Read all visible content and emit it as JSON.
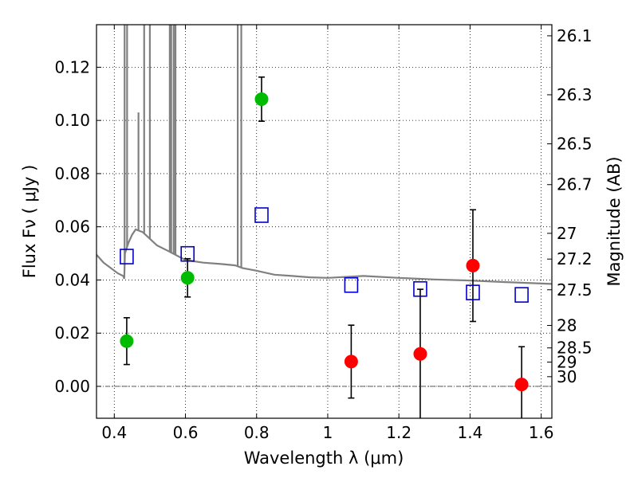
{
  "chart_data": {
    "type": "scatter",
    "xlabel": "Wavelength  λ (μm)",
    "ylabel": "Flux  Fν  ( μJy )",
    "y2label": "Magnitude (AB)",
    "xlim": [
      0.35,
      1.63
    ],
    "ylim": [
      -0.012,
      0.136
    ],
    "grid": true,
    "x_ticks": [
      0.4,
      0.6,
      0.8,
      1.0,
      1.2,
      1.4,
      1.6
    ],
    "x_tick_labels": [
      "0.4",
      "0.6",
      "0.8",
      "1",
      "1.2",
      "1.4",
      "1.6"
    ],
    "y_ticks": [
      0.0,
      0.02,
      0.04,
      0.06,
      0.08,
      0.1,
      0.12
    ],
    "y_tick_labels": [
      "0.00",
      "0.02",
      "0.04",
      "0.06",
      "0.08",
      "0.10",
      "0.12"
    ],
    "y2_ticks": [
      26.1,
      26.3,
      26.5,
      26.7,
      27,
      27.2,
      27.5,
      28,
      28.5,
      29,
      30
    ],
    "y2_tick_labels": [
      "26.1",
      "26.3",
      "26.5",
      "26.7",
      "27",
      "27.2",
      "27.5",
      "28",
      "28.5",
      "29",
      "30"
    ],
    "colors": {
      "green": "#00bb00",
      "red": "#ff0000",
      "blue": "#0000cc",
      "model": "#808080"
    },
    "series": [
      {
        "marker": "circle",
        "color": "green",
        "x": [
          0.435,
          0.606,
          0.814
        ],
        "y": [
          0.017,
          0.0408,
          0.108
        ],
        "err": [
          0.0088,
          0.0072,
          0.0083
        ]
      },
      {
        "marker": "circle",
        "color": "red",
        "x": [
          1.066,
          1.26,
          1.408,
          1.545
        ],
        "y": [
          0.0093,
          0.0122,
          0.0454,
          0.0007
        ],
        "err": [
          0.0137,
          0.0243,
          0.021,
          0.0142
        ]
      },
      {
        "marker": "square",
        "color": "blue",
        "x": [
          0.435,
          0.606,
          0.814,
          1.066,
          1.26,
          1.408,
          1.545
        ],
        "y": [
          0.0488,
          0.0498,
          0.0644,
          0.0381,
          0.0366,
          0.0353,
          0.0344
        ]
      }
    ],
    "model_spectrum": {
      "color": "model",
      "x": [
        0.35,
        0.37,
        0.39,
        0.41,
        0.425,
        0.428,
        0.43,
        0.44,
        0.45,
        0.46,
        0.48,
        0.5,
        0.52,
        0.55,
        0.6,
        0.65,
        0.7,
        0.74,
        0.76,
        0.8,
        0.85,
        0.9,
        0.95,
        1.0,
        1.1,
        1.2,
        1.3,
        1.4,
        1.5,
        1.63
      ],
      "y": [
        0.0495,
        0.0465,
        0.0445,
        0.0425,
        0.0415,
        0.0405,
        0.05,
        0.054,
        0.057,
        0.059,
        0.058,
        0.0555,
        0.053,
        0.051,
        0.0475,
        0.0465,
        0.046,
        0.0455,
        0.0445,
        0.0435,
        0.042,
        0.0415,
        0.041,
        0.0408,
        0.0415,
        0.0408,
        0.0402,
        0.0398,
        0.0392,
        0.0385
      ]
    },
    "model_emission_lines": [
      {
        "x": 0.429,
        "peak": 0.136
      },
      {
        "x": 0.436,
        "peak": 0.136
      },
      {
        "x": 0.468,
        "peak": 0.103
      },
      {
        "x": 0.484,
        "peak": 0.136
      },
      {
        "x": 0.5,
        "peak": 0.136
      },
      {
        "x": 0.556,
        "peak": 0.136
      },
      {
        "x": 0.56,
        "peak": 0.136
      },
      {
        "x": 0.567,
        "peak": 0.136
      },
      {
        "x": 0.572,
        "peak": 0.136
      },
      {
        "x": 0.747,
        "peak": 0.136
      },
      {
        "x": 0.757,
        "peak": 0.136
      }
    ]
  }
}
